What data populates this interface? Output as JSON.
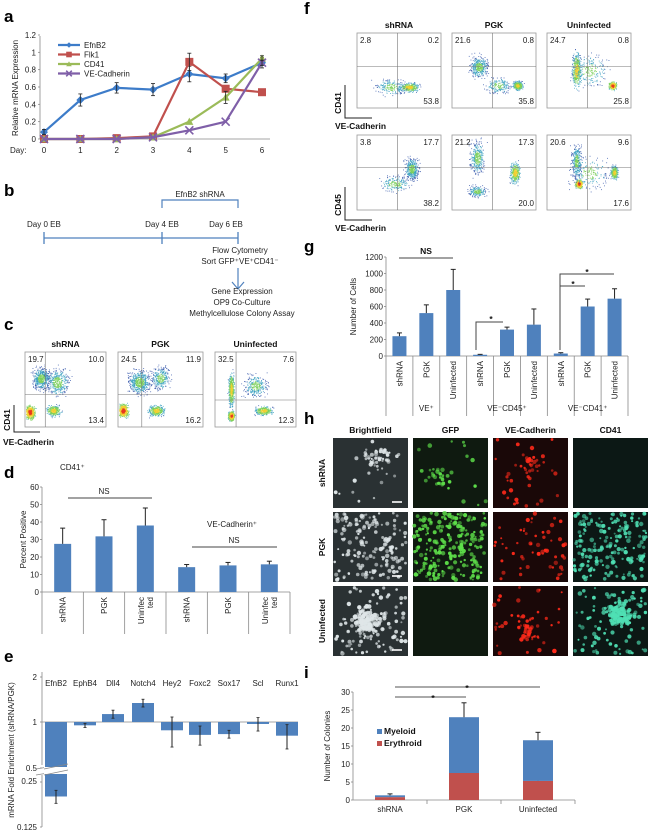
{
  "panel_labels": [
    "a",
    "b",
    "c",
    "d",
    "e",
    "f",
    "g",
    "h",
    "i"
  ],
  "colors": {
    "blue": "#4f81bd",
    "red": "#c0504d",
    "green": "#9bbb59",
    "purple": "#7f5fa8",
    "lineblue": "#3d7cc9"
  },
  "chart_data": [
    {
      "id": "a",
      "type": "line",
      "ylabel": "Relative mRNA Expression",
      "xlabel": "Day:",
      "x": [
        0,
        1,
        2,
        3,
        4,
        5,
        6
      ],
      "ylim": [
        0,
        1.2
      ],
      "yticks": [
        "0",
        "0.2",
        "0.4",
        "0.6",
        "0.8",
        "1",
        "1.2"
      ],
      "legend_position": "top-left",
      "series": [
        {
          "name": "EfnB2",
          "color": "#3d7cc9",
          "marker": "diamond",
          "values": [
            0.08,
            0.45,
            0.59,
            0.57,
            0.75,
            0.7,
            0.88
          ],
          "errors": [
            0.03,
            0.07,
            0.06,
            0.07,
            0.09,
            0.05,
            0.06
          ]
        },
        {
          "name": "Flk1",
          "color": "#c0504d",
          "marker": "square",
          "values": [
            0,
            0,
            0.01,
            0.03,
            0.89,
            0.58,
            0.54
          ],
          "errors": [
            0,
            0,
            0,
            0,
            0.1,
            0,
            0
          ]
        },
        {
          "name": "CD41",
          "color": "#9bbb59",
          "marker": "triangle",
          "values": [
            0,
            0,
            0,
            0.02,
            0.2,
            0.48,
            0.93
          ],
          "errors": [
            0,
            0,
            0,
            0,
            0,
            0.07,
            0.03
          ]
        },
        {
          "name": "VE-Cadherin",
          "color": "#7f5fa8",
          "marker": "x",
          "values": [
            0,
            0,
            0,
            0.02,
            0.1,
            0.2,
            0.88
          ],
          "errors": [
            0,
            0,
            0,
            0,
            0,
            0,
            0.03
          ]
        }
      ]
    },
    {
      "id": "d",
      "type": "bar",
      "ylabel": "Percent Positive",
      "ylim": [
        0,
        60
      ],
      "yticks": [
        "0",
        "10",
        "20",
        "30",
        "40",
        "50",
        "60"
      ],
      "categories": [
        "shRNA",
        "PGK",
        "Uninfec ted",
        "shRNA",
        "PGK",
        "Uninfec ted"
      ],
      "values": [
        27.5,
        31.8,
        38,
        14.2,
        15.2,
        15.8
      ],
      "errors": [
        9,
        9.5,
        10,
        1.5,
        1.7,
        1.8
      ],
      "group_labels": [
        "CD41⁺",
        "VE-Cadherin⁺"
      ],
      "annotations": [
        "NS",
        "NS"
      ]
    },
    {
      "id": "e",
      "type": "bar",
      "ylabel": "mRNA Fold Enrichment (shRNA/PGK)",
      "yticks": [
        "2",
        "1",
        "0.5",
        "0.25",
        "0.125"
      ],
      "scale": "log2",
      "baseline": 1,
      "categories": [
        "EfnB2",
        "EphB4",
        "Dll4",
        "Notch4",
        "Hey2",
        "Foxc2",
        "Sox17",
        "Scl",
        "Runx1"
      ],
      "values": [
        0.2,
        0.95,
        1.13,
        1.34,
        0.88,
        0.82,
        0.83,
        0.97,
        0.81
      ],
      "errors": [
        0.02,
        0.03,
        0.07,
        0.08,
        0.2,
        0.12,
        0.05,
        0.1,
        0.15
      ]
    },
    {
      "id": "g",
      "type": "bar",
      "ylabel": "Number of Cells",
      "ylim": [
        0,
        1200
      ],
      "yticks": [
        "0",
        "200",
        "400",
        "600",
        "800",
        "1000",
        "1200"
      ],
      "categories": [
        "shRNA",
        "PGK",
        "Uninfected",
        "shRNA",
        "PGK",
        "Uninfected",
        "shRNA",
        "PGK",
        "Uninfected"
      ],
      "values": [
        240,
        520,
        800,
        15,
        320,
        380,
        30,
        600,
        695
      ],
      "errors": [
        40,
        100,
        250,
        5,
        30,
        190,
        10,
        90,
        120
      ],
      "group_labels": [
        "VE⁺",
        "VE⁻CD45⁺",
        "VE⁻CD41⁺"
      ],
      "annotations": [
        "NS",
        "*",
        "*",
        "*"
      ]
    },
    {
      "id": "i",
      "type": "bar",
      "stacked": true,
      "ylabel": "Number of Colonies",
      "ylim": [
        0,
        30
      ],
      "yticks": [
        "0",
        "5",
        "10",
        "15",
        "20",
        "25",
        "30"
      ],
      "categories": [
        "shRNA",
        "PGK",
        "Uninfected"
      ],
      "series": [
        {
          "name": "Erythroid",
          "color": "#c0504d",
          "values": [
            0.8,
            7.5,
            5.3
          ],
          "errors": [
            0.3,
            6,
            3.3
          ]
        },
        {
          "name": "Myeloid",
          "color": "#4f81bd",
          "values": [
            0.5,
            15.5,
            11.3
          ],
          "errors": [
            0.4,
            4,
            2.2
          ]
        }
      ],
      "legend": [
        "Myeloid",
        "Erythroid"
      ],
      "annotations": [
        "*",
        "*"
      ]
    }
  ],
  "panel_b": {
    "bracket_label": "EfnB2 shRNA",
    "days": [
      "Day 0 EB",
      "Day 4 EB",
      "Day 6 EB"
    ],
    "sort_lines": [
      "Flow Cytometry",
      "Sort GFP⁺VE⁺CD41⁻"
    ],
    "assays": [
      "Gene Expression",
      "OP9 Co-Culture",
      "Methylcellulose Colony Assay"
    ]
  },
  "panel_c": {
    "conditions": [
      "shRNA",
      "PGK",
      "Uninfected"
    ],
    "y_axis": "CD41",
    "x_axis": "VE-Cadherin",
    "quadrants": [
      {
        "tl": "19.7",
        "tr": "10.0",
        "br": "13.4"
      },
      {
        "tl": "24.5",
        "tr": "11.9",
        "br": "16.2"
      },
      {
        "tl": "32.5",
        "tr": "7.6",
        "br": "12.3"
      }
    ]
  },
  "panel_f": {
    "conditions": [
      "shRNA",
      "PGK",
      "Uninfected"
    ],
    "rows": [
      {
        "y_axis": "CD41",
        "x_axis": "VE-Cadherin",
        "quadrants": [
          {
            "tl": "2.8",
            "tr": "0.2",
            "br": "53.8"
          },
          {
            "tl": "21.6",
            "tr": "0.8",
            "br": "35.8"
          },
          {
            "tl": "24.7",
            "tr": "0.8",
            "br": "25.8"
          }
        ]
      },
      {
        "y_axis": "CD45",
        "x_axis": "VE-Cadherin",
        "quadrants": [
          {
            "tl": "3.8",
            "tr": "17.7",
            "br": "38.2"
          },
          {
            "tl": "21.2",
            "tr": "17.3",
            "br": "20.0"
          },
          {
            "tl": "20.6",
            "tr": "9.6",
            "br": "17.6"
          }
        ]
      }
    ]
  },
  "panel_h": {
    "columns": [
      "Brightfield",
      "GFP",
      "VE-Cadherin",
      "CD41"
    ],
    "rows": [
      "shRNA",
      "PGK",
      "Uninfected"
    ]
  }
}
